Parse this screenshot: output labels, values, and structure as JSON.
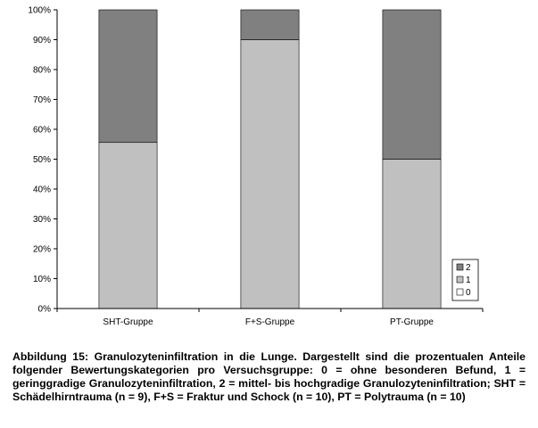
{
  "chart_data": {
    "type": "bar",
    "stacked": true,
    "percent": true,
    "categories": [
      "SHT-Gruppe",
      "F+S-Gruppe",
      "PT-Gruppe"
    ],
    "series": [
      {
        "name": "0",
        "values": [
          0,
          0,
          0
        ],
        "color": "#ffffff"
      },
      {
        "name": "1",
        "values": [
          55.6,
          90,
          50
        ],
        "color": "#c0c0c0"
      },
      {
        "name": "2",
        "values": [
          44.4,
          10,
          50
        ],
        "color": "#808080"
      }
    ],
    "ylim": [
      0,
      100
    ],
    "yticks": [
      "0%",
      "10%",
      "20%",
      "30%",
      "40%",
      "50%",
      "60%",
      "70%",
      "80%",
      "90%",
      "100%"
    ],
    "grid": false,
    "legend": {
      "position": "bottom-right",
      "order": [
        "2",
        "1",
        "0"
      ]
    }
  },
  "caption": "Abbildung 15: Granulozyteninfiltration in die Lunge. Dargestellt sind die prozentualen Anteile folgender Bewertungskategorien pro Versuchsgruppe: 0 = ohne besonderen Befund, 1 = geringgradige Granulozyteninfiltration, 2 = mittel- bis hochgradige Granulozyteninfiltration; SHT = Schädelhirntrauma (n = 9), F+S = Fraktur und Schock (n = 10), PT = Polytrauma (n = 10)"
}
